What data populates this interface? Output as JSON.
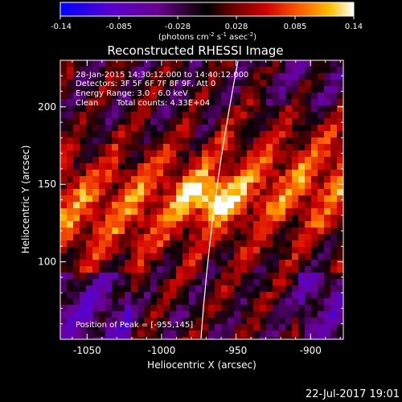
{
  "colorbar": {
    "ticks": [
      "-0.14",
      "-0.085",
      "-0.028",
      "0.028",
      "0.085",
      "0.14"
    ],
    "unit_main": "(photons cm",
    "unit_exp1": "-2",
    "unit_mid": " s",
    "unit_exp2": "-1",
    "unit_mid2": " asec",
    "unit_exp3": "-2",
    "unit_end": ")"
  },
  "title": "Reconstructed RHESSI Image",
  "info": {
    "time_range": "28-Jan-2015 14:30:12.000 to 14:40:12.000",
    "detectors": "Detectors: 3F 5F 6F 7F 8F 9F, Att 0",
    "energy": "Energy Range: 3.0 - 6.0 keV",
    "clean_label": "Clean",
    "total_counts": "Total counts: 4.33E+04"
  },
  "peak_label": "Position of Peak = [-955,145]",
  "x_axis": {
    "label": "Heliocentric X (arcsec)",
    "ticks": [
      "-1050",
      "-1000",
      "-950",
      "-900"
    ],
    "range": [
      -1068,
      -878
    ]
  },
  "y_axis": {
    "label": "Heliocentric Y (arcsec)",
    "ticks": [
      "200",
      "150",
      "100"
    ],
    "range": [
      50,
      230
    ]
  },
  "timestamp": "22-Jul-2017 19:01",
  "colors": {
    "background": "#000000",
    "frame": "#ffffff",
    "limb_line": "#ffffff"
  }
}
